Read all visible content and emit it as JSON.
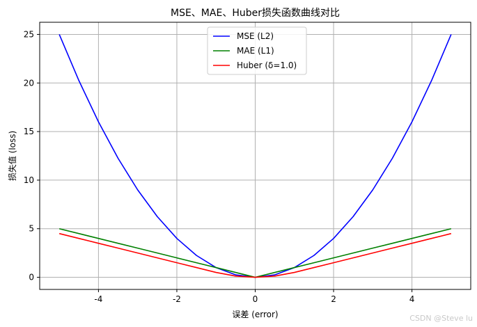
{
  "chart_data": {
    "type": "line",
    "title": "MSE、MAE、Huber损失函数曲线对比",
    "xlabel": "误差 (error)",
    "ylabel": "损失值 (loss)",
    "xlim": [
      -5.5,
      5.5
    ],
    "ylim": [
      -1.25,
      26.25
    ],
    "xticks": [
      -4,
      -2,
      0,
      2,
      4
    ],
    "xtick_labels": [
      "-4",
      "-2",
      "0",
      "2",
      "4"
    ],
    "yticks": [
      0,
      5,
      10,
      15,
      20,
      25
    ],
    "ytick_labels": [
      "0",
      "5",
      "10",
      "15",
      "20",
      "25"
    ],
    "grid": true,
    "legend_position": "top-center",
    "x": [
      -5,
      -4.5,
      -4,
      -3.5,
      -3,
      -2.5,
      -2,
      -1.5,
      -1,
      -0.5,
      0,
      0.5,
      1,
      1.5,
      2,
      2.5,
      3,
      3.5,
      4,
      4.5,
      5
    ],
    "series": [
      {
        "name": "MSE (L2)",
        "color": "#0000ff",
        "values": [
          25,
          20.25,
          16,
          12.25,
          9,
          6.25,
          4,
          2.25,
          1,
          0.25,
          0,
          0.25,
          1,
          2.25,
          4,
          6.25,
          9,
          12.25,
          16,
          20.25,
          25
        ]
      },
      {
        "name": "MAE (L1)",
        "color": "#008000",
        "values": [
          5,
          4.5,
          4,
          3.5,
          3,
          2.5,
          2,
          1.5,
          1,
          0.5,
          0,
          0.5,
          1,
          1.5,
          2,
          2.5,
          3,
          3.5,
          4,
          4.5,
          5
        ]
      },
      {
        "name": "Huber (δ=1.0)",
        "color": "#ff0000",
        "values": [
          4.5,
          4,
          3.5,
          3,
          2.5,
          2,
          1.5,
          1,
          0.5,
          0.125,
          0,
          0.125,
          0.5,
          1,
          1.5,
          2,
          2.5,
          3,
          3.5,
          4,
          4.5
        ]
      }
    ]
  },
  "watermark": "CSDN @Steve lu"
}
